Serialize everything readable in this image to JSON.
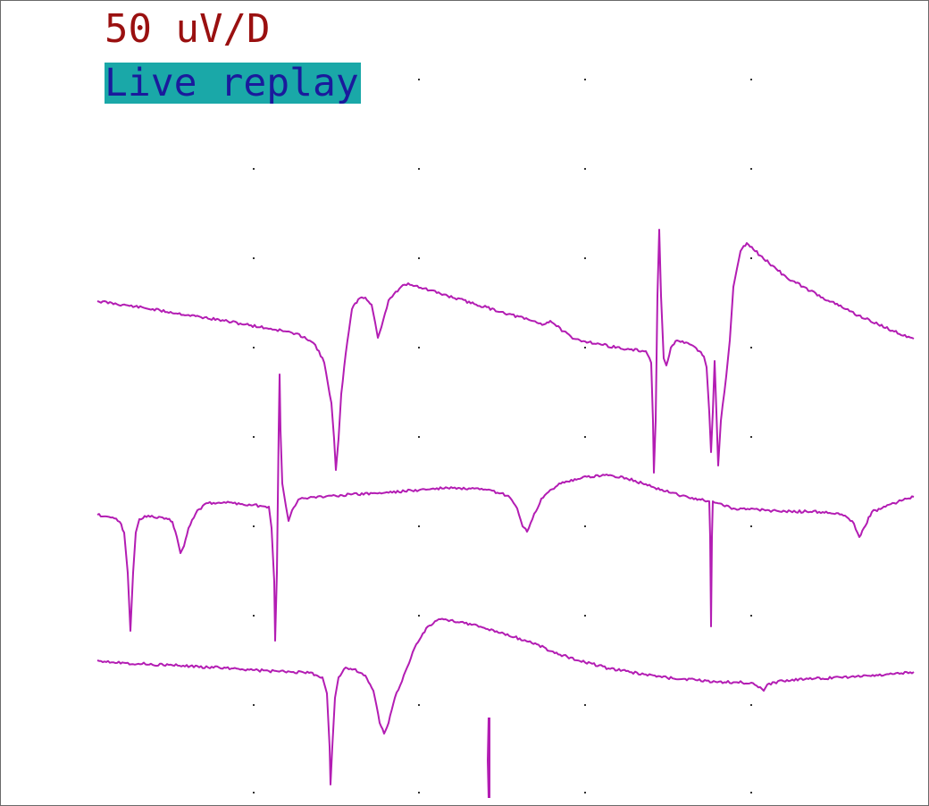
{
  "display": {
    "scale_label": "50 uV/D",
    "mode_label": "Live replay"
  },
  "colors": {
    "scale_text": "#9a1010",
    "mode_background": "#1aa8a8",
    "mode_text": "#1a1a9c",
    "trace": "#b31db3",
    "grid_dot": "#333333"
  }
}
